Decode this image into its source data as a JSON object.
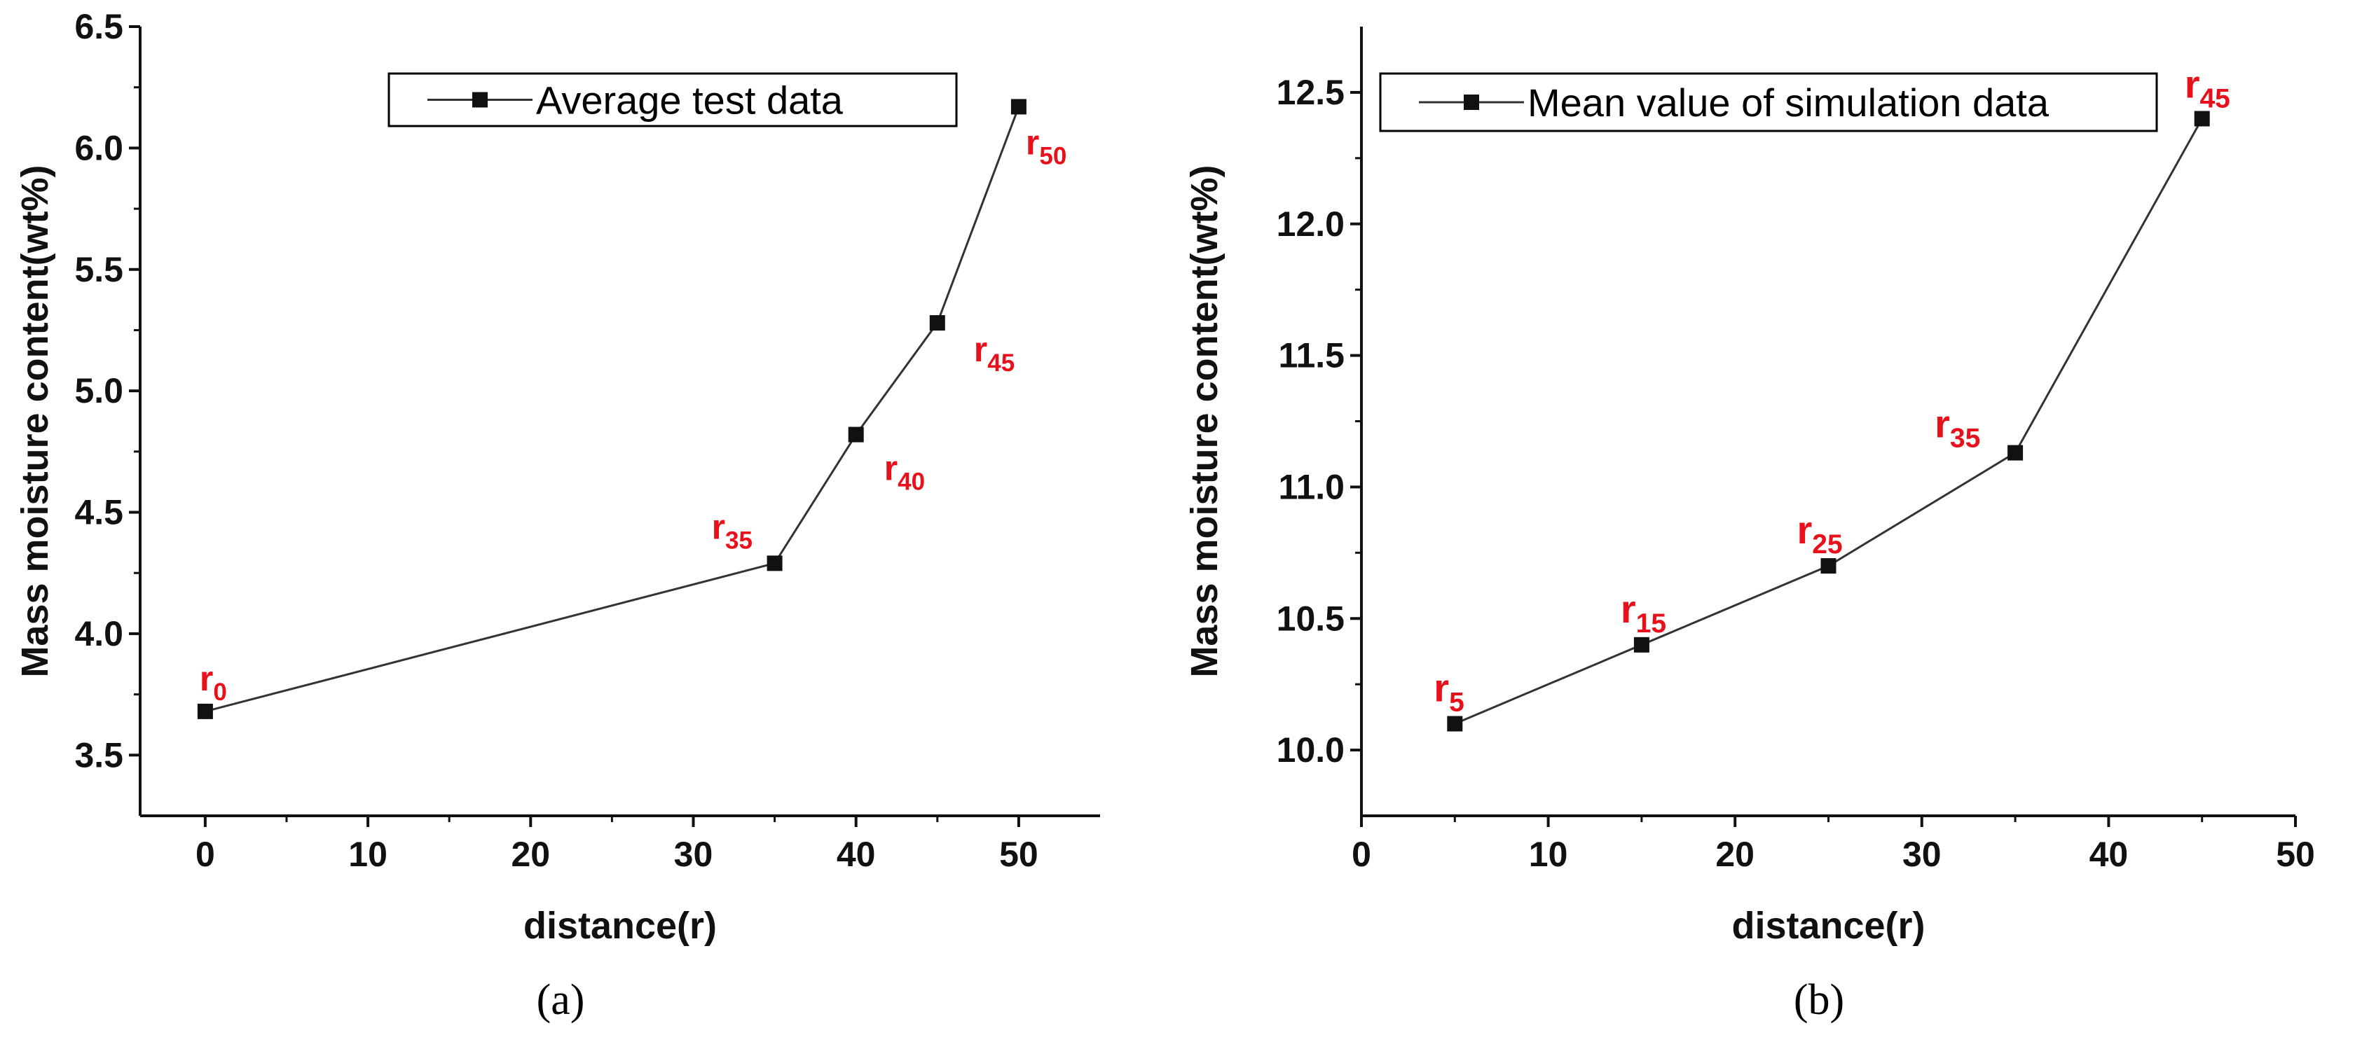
{
  "chart_data": [
    {
      "type": "line",
      "panel_label": "(a)",
      "xlabel": "distance(r)",
      "ylabel": "Mass moisture content(wt%)",
      "xlim": [
        -4,
        55
      ],
      "ylim": [
        3.25,
        6.5
      ],
      "xticks": [
        0,
        10,
        20,
        30,
        40,
        50
      ],
      "yticks": [
        3.5,
        4.0,
        4.5,
        5.0,
        5.5,
        6.0,
        6.5
      ],
      "xtick_labels": [
        "0",
        "10",
        "20",
        "30",
        "40",
        "50"
      ],
      "ytick_labels": [
        "3.5",
        "4.0",
        "4.5",
        "5.0",
        "5.5",
        "6.0",
        "6.5"
      ],
      "legend": {
        "label": "Average test data",
        "position": "top-right"
      },
      "series": [
        {
          "name": "Average test data",
          "x": [
            0,
            35,
            40,
            45,
            50
          ],
          "y": [
            3.68,
            4.29,
            4.82,
            5.28,
            6.17
          ],
          "point_labels": [
            {
              "base": "r",
              "sub": "0",
              "placement": "above"
            },
            {
              "base": "r",
              "sub": "35",
              "placement": "above-left"
            },
            {
              "base": "r",
              "sub": "40",
              "placement": "below-right"
            },
            {
              "base": "r",
              "sub": "45",
              "placement": "below-right"
            },
            {
              "base": "r",
              "sub": "50",
              "placement": "below-right"
            }
          ]
        }
      ]
    },
    {
      "type": "line",
      "panel_label": "(b)",
      "xlabel": "distance(r)",
      "ylabel": "Mass moisture content(wt%)",
      "xlim": [
        0,
        50
      ],
      "ylim": [
        9.75,
        12.75
      ],
      "xticks": [
        0,
        10,
        20,
        30,
        40,
        50
      ],
      "yticks": [
        10.0,
        10.5,
        11.0,
        11.5,
        12.0,
        12.5
      ],
      "xtick_labels": [
        "0",
        "10",
        "20",
        "30",
        "40",
        "50"
      ],
      "ytick_labels": [
        "10.0",
        "10.5",
        "11.0",
        "11.5",
        "12.0",
        "12.5"
      ],
      "legend": {
        "label": "Mean value of simulation data",
        "position": "top"
      },
      "series": [
        {
          "name": "Mean value of simulation data",
          "x": [
            5,
            15,
            25,
            35,
            45
          ],
          "y": [
            10.1,
            10.4,
            10.7,
            11.13,
            12.4
          ],
          "point_labels": [
            {
              "base": "r",
              "sub": "5",
              "placement": "above"
            },
            {
              "base": "r",
              "sub": "15",
              "placement": "above"
            },
            {
              "base": "r",
              "sub": "25",
              "placement": "above"
            },
            {
              "base": "r",
              "sub": "35",
              "placement": "above-left"
            },
            {
              "base": "r",
              "sub": "45",
              "placement": "above"
            }
          ]
        }
      ]
    }
  ],
  "colors": {
    "axis": "#111111",
    "line": "#333333",
    "marker": "#111111",
    "point_label": "#e8101a"
  }
}
